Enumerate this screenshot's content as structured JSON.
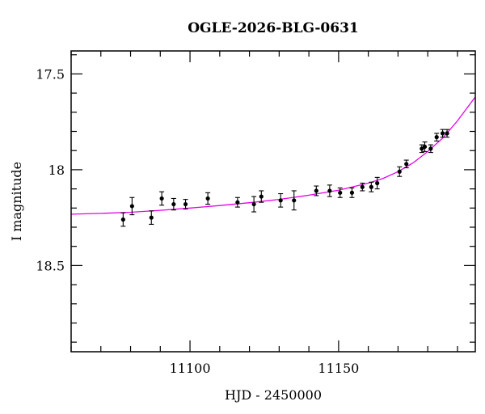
{
  "chart_data": {
    "type": "scatter",
    "title": "OGLE-2026-BLG-0631",
    "xlabel": "HJD - 2450000",
    "ylabel": "I magnitude",
    "xlim": [
      11060,
      11196
    ],
    "ylim": [
      18.95,
      17.38
    ],
    "y_inverted": true,
    "x_major_ticks": [
      11100,
      11150
    ],
    "x_minor_step": 10,
    "y_major_ticks": [
      17.5,
      18,
      18.5
    ],
    "y_major_tick_labels": [
      "17.5",
      "18",
      "18.5"
    ],
    "y_minor_step": 0.1,
    "grid": false,
    "series": [
      {
        "kind": "points_with_errorbars",
        "color": "#000000",
        "x": [
          11077.5,
          11080.5,
          11087,
          11090.5,
          11094.5,
          11098.5,
          11106,
          11116,
          11121.5,
          11124,
          11130.5,
          11135,
          11142.5,
          11147,
          11150.5,
          11154.5,
          11158,
          11161,
          11163,
          11170.5,
          11172.8,
          11178,
          11179,
          11181,
          11183,
          11185,
          11186.5
        ],
        "y": [
          18.26,
          18.19,
          18.25,
          18.15,
          18.18,
          18.18,
          18.15,
          18.17,
          18.18,
          18.14,
          18.16,
          18.16,
          18.11,
          18.11,
          18.12,
          18.12,
          18.09,
          18.09,
          18.07,
          18.01,
          17.97,
          17.89,
          17.88,
          17.89,
          17.83,
          17.81,
          17.81
        ],
        "yerr": [
          0.035,
          0.045,
          0.035,
          0.035,
          0.03,
          0.025,
          0.03,
          0.025,
          0.04,
          0.03,
          0.035,
          0.05,
          0.025,
          0.03,
          0.025,
          0.025,
          0.02,
          0.025,
          0.03,
          0.025,
          0.02,
          0.02,
          0.025,
          0.02,
          0.02,
          0.02,
          0.02
        ]
      },
      {
        "kind": "model_curve",
        "color": "#e600e6",
        "x": [
          11060,
          11070,
          11080,
          11090,
          11100,
          11110,
          11120,
          11130,
          11140,
          11150,
          11160,
          11165,
          11170,
          11175,
          11180,
          11185,
          11190,
          11196
        ],
        "y": [
          18.232,
          18.228,
          18.222,
          18.212,
          18.2,
          18.187,
          18.172,
          18.155,
          18.133,
          18.107,
          18.07,
          18.045,
          18.01,
          17.965,
          17.905,
          17.835,
          17.745,
          17.62
        ]
      }
    ]
  }
}
